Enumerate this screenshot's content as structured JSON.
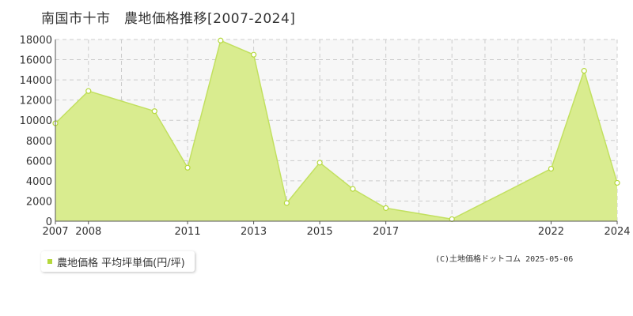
{
  "title": "南国市十市　農地価格推移[2007-2024]",
  "legend": {
    "label": "農地価格 平均坪単価(円/坪)",
    "marker_color": "#b5d83c"
  },
  "copyright": "(C)土地価格ドットコム 2025-05-06",
  "colors": {
    "fill": "#d9ec8f",
    "line": "#c2e060",
    "point_stroke": "#b5d83c",
    "grid": "#cccccc",
    "plot_bg": "#f7f7f7"
  },
  "chart_data": {
    "type": "area",
    "x": [
      2007,
      2008,
      2010,
      2011,
      2012,
      2013,
      2014,
      2015,
      2016,
      2017,
      2019,
      2022,
      2023,
      2024
    ],
    "values": [
      9700,
      12900,
      10900,
      5300,
      17900,
      16500,
      1800,
      5800,
      3200,
      1300,
      200,
      5200,
      14900,
      3800
    ],
    "x_tick_labels": [
      "2007",
      "2008",
      "2011",
      "2013",
      "2015",
      "2017",
      "2022",
      "2024"
    ],
    "y_ticks": [
      0,
      2000,
      4000,
      6000,
      8000,
      10000,
      12000,
      14000,
      16000,
      18000
    ],
    "ylim": [
      0,
      18000
    ],
    "grid": true
  }
}
